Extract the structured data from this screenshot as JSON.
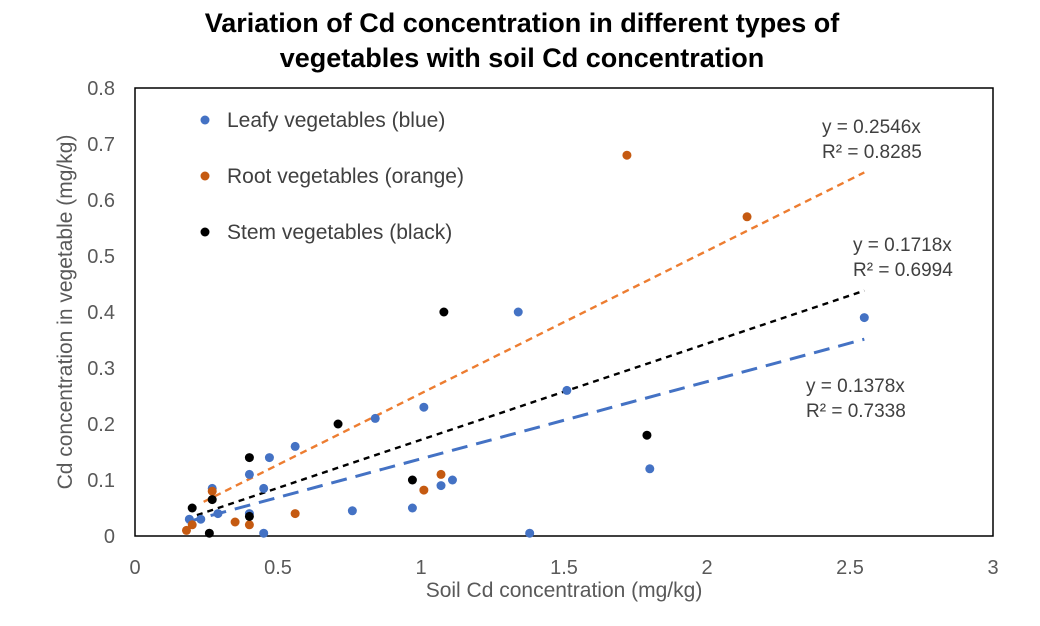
{
  "chart_data": {
    "type": "scatter",
    "title": "Variation of Cd concentration in different types of vegetables with soil Cd concentration",
    "title_lines": [
      "Variation of Cd concentration in different types of",
      "vegetables with soil Cd concentration"
    ],
    "xlabel": "Soil Cd concentration (mg/kg)",
    "ylabel": "Cd concentration in vegetable (mg/kg)",
    "xlim": [
      0,
      3
    ],
    "ylim": [
      0,
      0.8
    ],
    "xticks": [
      0,
      0.5,
      1,
      1.5,
      2,
      2.5,
      3
    ],
    "xtick_labels": [
      "0",
      "0.5",
      "1",
      "1.5",
      "2",
      "2.5",
      "3"
    ],
    "yticks": [
      0,
      0.1,
      0.2,
      0.3,
      0.4,
      0.5,
      0.6,
      0.7,
      0.8
    ],
    "ytick_labels": [
      "0",
      "0.1",
      "0.2",
      "0.3",
      "0.4",
      "0.5",
      "0.6",
      "0.7",
      "0.8"
    ],
    "grid": false,
    "legend_position": "top-left",
    "series": [
      {
        "name": "Leafy vegetables (blue)",
        "color": "#4472C4",
        "points": [
          [
            0.19,
            0.03
          ],
          [
            0.23,
            0.03
          ],
          [
            0.27,
            0.085
          ],
          [
            0.29,
            0.04
          ],
          [
            0.4,
            0.11
          ],
          [
            0.4,
            0.04
          ],
          [
            0.45,
            0.085
          ],
          [
            0.45,
            0.005
          ],
          [
            0.47,
            0.14
          ],
          [
            0.56,
            0.16
          ],
          [
            0.76,
            0.045
          ],
          [
            0.84,
            0.21
          ],
          [
            0.97,
            0.05
          ],
          [
            1.01,
            0.23
          ],
          [
            1.07,
            0.09
          ],
          [
            1.11,
            0.1
          ],
          [
            1.34,
            0.4
          ],
          [
            1.38,
            0.005
          ],
          [
            1.51,
            0.26
          ],
          [
            1.8,
            0.12
          ],
          [
            2.55,
            0.39
          ]
        ],
        "trendline": {
          "slope": 0.1378,
          "x_range": [
            0.18,
            2.55
          ],
          "equation": "y = 0.1378x",
          "r2": "R² = 0.7338",
          "style": "dashed"
        }
      },
      {
        "name": "Root vegetables (orange)",
        "color": "#C55A11",
        "points": [
          [
            0.18,
            0.01
          ],
          [
            0.2,
            0.02
          ],
          [
            0.27,
            0.08
          ],
          [
            0.35,
            0.025
          ],
          [
            0.4,
            0.02
          ],
          [
            0.56,
            0.04
          ],
          [
            1.01,
            0.082
          ],
          [
            1.07,
            0.11
          ],
          [
            1.72,
            0.68
          ],
          [
            2.14,
            0.57
          ]
        ],
        "trendline": {
          "slope": 0.2546,
          "color": "#ED7D31",
          "x_range": [
            0.24,
            2.55
          ],
          "equation": "y = 0.2546x",
          "r2": "R² = 0.8285",
          "style": "dashed"
        }
      },
      {
        "name": "Stem vegetables (black)",
        "color": "#000000",
        "points": [
          [
            0.2,
            0.05
          ],
          [
            0.26,
            0.005
          ],
          [
            0.27,
            0.065
          ],
          [
            0.4,
            0.14
          ],
          [
            0.4,
            0.035
          ],
          [
            0.71,
            0.2
          ],
          [
            0.97,
            0.1
          ],
          [
            1.08,
            0.4
          ],
          [
            1.79,
            0.18
          ]
        ],
        "trendline": {
          "slope": 0.1718,
          "x_range": [
            0.18,
            2.55
          ],
          "equation": "y = 0.1718x",
          "r2": "R² = 0.6994",
          "style": "dashed"
        }
      }
    ]
  }
}
